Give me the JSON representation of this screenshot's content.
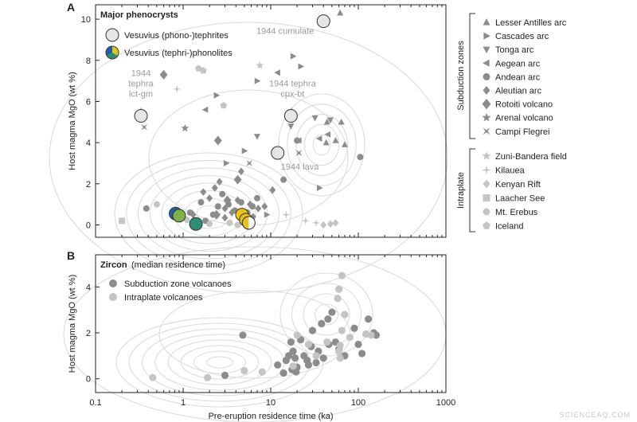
{
  "watermark": "SCIENCEAQ.COM",
  "colors": {
    "dark": "#8c8c8c",
    "light": "#c4c4c4",
    "contour": "#dcdcdc",
    "axis": "#222222",
    "phono_fill": "#e6e6e6",
    "yellow": "#e8c21a",
    "blue": "#1f5fa8",
    "teal": "#2a8f74",
    "green": "#7fb24a"
  },
  "x_ticks": {
    "values": [
      0.1,
      1,
      10,
      100,
      1000
    ],
    "labels": [
      "0.1",
      "1",
      "10",
      "100",
      "1000"
    ]
  },
  "xlabel": "Pre-eruption residence time (ka)",
  "legend_right": {
    "subduction_label": "Subduction zones",
    "intraplate_label": "Intraplate",
    "subduction": [
      {
        "label": "Lesser Antilles arc",
        "icon": "triangle-up-icon"
      },
      {
        "label": "Cascades arc",
        "icon": "triangle-right-icon"
      },
      {
        "label": "Tonga arc",
        "icon": "triangle-down-icon"
      },
      {
        "label": "Aegean arc",
        "icon": "triangle-left-icon"
      },
      {
        "label": "Andean arc",
        "icon": "circle-icon"
      },
      {
        "label": "Aleutian arc",
        "icon": "diamond-icon"
      },
      {
        "label": "Rotoiti volcano",
        "icon": "large-diamond-icon"
      },
      {
        "label": "Arenal volcano",
        "icon": "star-icon"
      },
      {
        "label": "Campi Flegrei",
        "icon": "bowtie-icon"
      }
    ],
    "intraplate": [
      {
        "label": "Zuni-Bandera field",
        "icon": "star-icon"
      },
      {
        "label": "Kilauea",
        "icon": "sparkle-icon"
      },
      {
        "label": "Kenyan Rift",
        "icon": "diamond-icon"
      },
      {
        "label": "Laacher See",
        "icon": "square-icon"
      },
      {
        "label": "Mt. Erebus",
        "icon": "circle-icon"
      },
      {
        "label": "Iceland",
        "icon": "pentagon-icon"
      }
    ]
  },
  "chart_data": [
    {
      "panel": "A",
      "type": "scatter",
      "title": "Major phenocrysts",
      "ylabel": "Host magma MgO (wt %)",
      "x_scale": "log",
      "xlim": [
        0.1,
        1000
      ],
      "ylim": [
        -0.6,
        10.7
      ],
      "y_ticks": [
        0,
        2,
        4,
        6,
        8,
        10
      ],
      "grid": false,
      "legend": [
        {
          "label": "Vesuvius (phono-)tephrites",
          "icon": "grey-circle-icon"
        },
        {
          "label": "Vesuvius (tephri-)phonolites",
          "icon": "tricolor-circle-icon"
        }
      ],
      "annotations": [
        {
          "text": [
            "1944 cumulate"
          ],
          "x": 40,
          "y": 9.9
        },
        {
          "text": [
            "1944",
            "tephra",
            "lct-gm"
          ],
          "x": 0.33,
          "y": 5.3
        },
        {
          "text": [
            "1944 tephra",
            "cpx-bt"
          ],
          "x": 17,
          "y": 5.3
        },
        {
          "text": [
            "1944 lava"
          ],
          "x": 12,
          "y": 3.5
        }
      ],
      "vesuvius_tephrites": [
        [
          40,
          9.9
        ],
        [
          0.33,
          5.3
        ],
        [
          17,
          5.3
        ],
        [
          12,
          3.5
        ]
      ],
      "vesuvius_phonolites": [
        {
          "x": 0.82,
          "y": 0.55,
          "color": "blue"
        },
        {
          "x": 0.9,
          "y": 0.45,
          "color": "green"
        },
        {
          "x": 1.4,
          "y": 0.05,
          "color": "teal"
        },
        {
          "x": 4.7,
          "y": 0.5,
          "color": "yellow"
        },
        {
          "x": 5.2,
          "y": 0.25,
          "color": "yellow"
        },
        {
          "x": 5.6,
          "y": 0.1,
          "color": "split"
        }
      ],
      "series": [
        {
          "name": "Lesser Antilles arc",
          "marker": "triangle-up",
          "shade": "dark",
          "points": [
            [
              62,
              10.3
            ],
            [
              44,
              5.0
            ],
            [
              64,
              5.0
            ],
            [
              55,
              4.1
            ],
            [
              43,
              4.0
            ],
            [
              70,
              3.9
            ]
          ]
        },
        {
          "name": "Cascades arc",
          "marker": "triangle-right",
          "shade": "dark",
          "points": [
            [
              18,
              8.2
            ],
            [
              22,
              7.7
            ],
            [
              7,
              7.0
            ],
            [
              2.4,
              6.3
            ],
            [
              5,
              3.6
            ],
            [
              3.1,
              3.0
            ],
            [
              36,
              1.8
            ],
            [
              9,
              0.5
            ]
          ]
        },
        {
          "name": "Tonga arc",
          "marker": "triangle-down",
          "shade": "dark",
          "points": [
            [
              32,
              5.2
            ],
            [
              48,
              5.1
            ],
            [
              17,
              4.8
            ],
            [
              7,
              4.3
            ]
          ]
        },
        {
          "name": "Aegean arc",
          "marker": "triangle-left",
          "shade": "dark",
          "points": [
            [
              12,
              7.4
            ],
            [
              1.8,
              5.6
            ],
            [
              36,
              4.2
            ],
            [
              45,
              4.4
            ],
            [
              21,
              4.1
            ]
          ]
        },
        {
          "name": "Andean arc",
          "marker": "circle",
          "shade": "dark",
          "points": [
            [
              20,
              4.1
            ],
            [
              105,
              3.3
            ],
            [
              14,
              2.2
            ],
            [
              0.38,
              0.8
            ],
            [
              2.5,
              0.9
            ],
            [
              2.8,
              1.5
            ],
            [
              3.3,
              1.0
            ],
            [
              3.9,
              0.7
            ],
            [
              4.6,
              1.1
            ],
            [
              5.4,
              0.6
            ],
            [
              6.2,
              0.9
            ],
            [
              7.0,
              1.3
            ],
            [
              2.2,
              0.5
            ],
            [
              1.8,
              0.2
            ],
            [
              1.6,
              1.1
            ],
            [
              1.2,
              0.6
            ]
          ]
        },
        {
          "name": "Aleutian arc",
          "marker": "diamond",
          "shade": "dark",
          "points": [
            [
              1.7,
              1.6
            ],
            [
              2.0,
              1.3
            ],
            [
              2.3,
              1.8
            ],
            [
              2.6,
              2.1
            ],
            [
              3.0,
              0.8
            ],
            [
              3.6,
              0.6
            ],
            [
              4.2,
              1.2
            ],
            [
              4.6,
              2.6
            ],
            [
              5.8,
              1.0
            ],
            [
              6.3,
              0.4
            ],
            [
              7.2,
              0.8
            ],
            [
              8.5,
              0.9
            ],
            [
              10.5,
              1.7
            ],
            [
              1.3,
              0.5
            ],
            [
              3.0,
              0.35
            ]
          ]
        },
        {
          "name": "Rotoiti volcano",
          "marker": "diamond",
          "shade": "dark",
          "points": [
            [
              0.6,
              7.3
            ],
            [
              2.5,
              4.1
            ],
            [
              4.2,
              2.2
            ],
            [
              3.2,
              1.2
            ],
            [
              2.4,
              0.5
            ]
          ]
        },
        {
          "name": "Arenal volcano",
          "marker": "star",
          "shade": "dark",
          "points": [
            [
              1.05,
              4.7
            ]
          ]
        },
        {
          "name": "Campi Flegrei",
          "marker": "bowtie",
          "shade": "dark",
          "points": [
            [
              0.36,
              4.75
            ],
            [
              5.7,
              3.0
            ],
            [
              21,
              3.5
            ]
          ]
        },
        {
          "name": "Zuni-Bandera field",
          "marker": "star",
          "shade": "light",
          "points": [
            [
              7.5,
              7.75
            ],
            [
              1.0,
              0.5
            ]
          ]
        },
        {
          "name": "Kilauea",
          "marker": "sparkle",
          "shade": "light",
          "points": [
            [
              0.85,
              6.6
            ],
            [
              15,
              0.5
            ],
            [
              25,
              0.2
            ],
            [
              33,
              0.1
            ]
          ]
        },
        {
          "name": "Kenyan Rift",
          "marker": "diamond",
          "shade": "light",
          "points": [
            [
              40,
              0.0
            ],
            [
              48,
              0.05
            ],
            [
              55,
              0.1
            ],
            [
              6.0,
              0.15
            ],
            [
              5.0,
              0.05
            ]
          ]
        },
        {
          "name": "Laacher See",
          "marker": "square",
          "shade": "light",
          "points": [
            [
              0.2,
              0.2
            ]
          ]
        },
        {
          "name": "Mt. Erebus",
          "marker": "circle",
          "shade": "light",
          "points": [
            [
              0.5,
              1.0
            ],
            [
              3.4,
              0.1
            ],
            [
              4.2,
              0.0
            ],
            [
              2.0,
              0.05
            ],
            [
              1.1,
              0.25
            ]
          ]
        },
        {
          "name": "Iceland",
          "marker": "pentagon",
          "shade": "light",
          "points": [
            [
              1.5,
              7.6
            ],
            [
              2.9,
              5.8
            ],
            [
              1.7,
              7.5
            ]
          ]
        }
      ]
    },
    {
      "panel": "B",
      "type": "scatter",
      "title": "Zircon",
      "subtitle": "(median residence time)",
      "ylabel": "Host magma MgO (wt %)",
      "x_scale": "log",
      "xlim": [
        0.1,
        1000
      ],
      "ylim": [
        -0.6,
        5.4
      ],
      "y_ticks": [
        0,
        2,
        4
      ],
      "grid": false,
      "series": [
        {
          "name": "Subduction zone volcanoes",
          "marker": "circle",
          "shade": "dark",
          "points": [
            [
              4.8,
              1.9
            ],
            [
              3.0,
              0.15
            ],
            [
              15,
              0.8
            ],
            [
              16,
              1.0
            ],
            [
              17,
              1.6
            ],
            [
              18,
              1.2
            ],
            [
              19,
              0.9
            ],
            [
              20,
              0.5
            ],
            [
              22,
              1.7
            ],
            [
              24,
              1.0
            ],
            [
              27,
              0.6
            ],
            [
              29,
              1.4
            ],
            [
              30,
              2.1
            ],
            [
              33,
              0.7
            ],
            [
              35,
              1.2
            ],
            [
              38,
              2.4
            ],
            [
              40,
              0.9
            ],
            [
              45,
              2.6
            ],
            [
              50,
              2.9
            ],
            [
              55,
              1.6
            ],
            [
              60,
              1.3
            ],
            [
              70,
              1.0
            ],
            [
              90,
              2.2
            ],
            [
              100,
              1.5
            ],
            [
              110,
              1.1
            ],
            [
              130,
              2.6
            ],
            [
              150,
              2.0
            ],
            [
              160,
              1.9
            ],
            [
              17.5,
              0.4
            ],
            [
              14,
              0.25
            ],
            [
              12,
              0.6
            ],
            [
              19.5,
              0.3
            ],
            [
              26,
              0.8
            ],
            [
              46,
              1.5
            ]
          ]
        },
        {
          "name": "Intraplate volcanoes",
          "marker": "circle",
          "shade": "light",
          "points": [
            [
              65,
              4.5
            ],
            [
              60,
              3.9
            ],
            [
              58,
              3.5
            ],
            [
              65,
              2.1
            ],
            [
              80,
              1.8
            ],
            [
              70,
              2.8
            ],
            [
              60,
              1.2
            ],
            [
              62,
              0.9
            ],
            [
              20,
              1.9
            ],
            [
              18,
              0.55
            ],
            [
              8,
              0.3
            ],
            [
              5,
              0.35
            ],
            [
              1.9,
              0.05
            ],
            [
              0.45,
              0.05
            ],
            [
              33,
              1.0
            ],
            [
              27,
              1.5
            ],
            [
              140,
              1.9
            ],
            [
              122,
              1.95
            ],
            [
              44,
              1.6
            ],
            [
              62,
              1.45
            ]
          ]
        }
      ]
    }
  ],
  "panel_b_legend": [
    {
      "label": "Subduction zone volcanoes",
      "icon": "dark-circle-icon"
    },
    {
      "label": "Intraplate volcanoes",
      "icon": "light-circle-icon"
    }
  ]
}
